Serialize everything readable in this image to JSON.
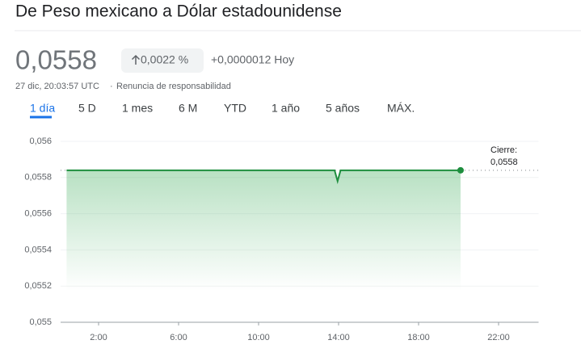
{
  "header": {
    "title": "De Peso mexicano a Dólar estadounidense",
    "price": "0,0558",
    "change_pct": "0,0022 %",
    "change_abs": "+0,0000012 Hoy",
    "timestamp": "27 dic, 20:03:57 UTC",
    "disclaimer": "Renuncia de responsabilidad"
  },
  "tabs": [
    "1 día",
    "5 D",
    "1 mes",
    "6 M",
    "YTD",
    "1 año",
    "5 años",
    "MÁX."
  ],
  "chart_data": {
    "type": "line",
    "x": [
      0.4,
      13.8,
      13.95,
      14.1,
      20.1
    ],
    "values": [
      0.05584,
      0.05584,
      0.05578,
      0.05584,
      0.05584
    ],
    "value_labels": [
      null,
      null,
      null,
      null,
      "0,0558"
    ],
    "annotation": "Cierre:",
    "previous_close": 0.05584,
    "color": "#1e8e3e",
    "xlim": [
      0,
      24
    ],
    "xticks": [
      {
        "value": 2,
        "label": "2:00"
      },
      {
        "value": 6,
        "label": "6:00"
      },
      {
        "value": 10,
        "label": "10:00"
      },
      {
        "value": 14,
        "label": "14:00"
      },
      {
        "value": 18,
        "label": "18:00"
      },
      {
        "value": 22,
        "label": "22:00"
      }
    ],
    "ylim": [
      0.055,
      0.056
    ],
    "yticks": [
      {
        "value": 0.055,
        "label": "0,055"
      },
      {
        "value": 0.0552,
        "label": "0,0552"
      },
      {
        "value": 0.0554,
        "label": "0,0554"
      },
      {
        "value": 0.0556,
        "label": "0,0556"
      },
      {
        "value": 0.0558,
        "label": "0,0558"
      },
      {
        "value": 0.056,
        "label": "0,056"
      }
    ],
    "grid": true
  }
}
